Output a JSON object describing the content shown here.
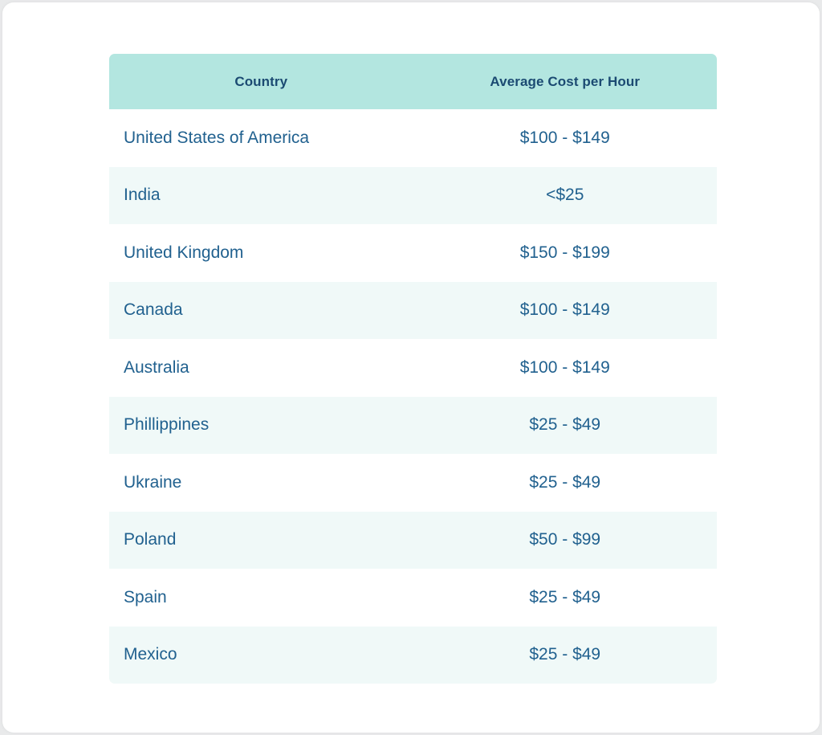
{
  "chart_data": {
    "type": "table",
    "columns": [
      "Country",
      "Average Cost per Hour"
    ],
    "rows": [
      {
        "country": "United States of America",
        "cost": "$100 - $149"
      },
      {
        "country": "India",
        "cost": "<$25"
      },
      {
        "country": "United Kingdom",
        "cost": "$150 - $199"
      },
      {
        "country": "Canada",
        "cost": "$100 - $149"
      },
      {
        "country": "Australia",
        "cost": "$100 - $149"
      },
      {
        "country": "Phillippines",
        "cost": "$25 - $49"
      },
      {
        "country": "Ukraine",
        "cost": "$25 - $49"
      },
      {
        "country": "Poland",
        "cost": "$50 - $99"
      },
      {
        "country": "Spain",
        "cost": "$25 - $49"
      },
      {
        "country": "Mexico",
        "cost": "$25 - $49"
      }
    ],
    "layout": {
      "header_position": "top",
      "alternating_rows": true,
      "first_body_row_background": "white"
    }
  },
  "colors": {
    "header_bg": "#b3e6e0",
    "header_text": "#1b4a72",
    "body_text": "#21618f",
    "alt_row_bg": "#f0f9f8",
    "card_bg": "#ffffff",
    "page_bg": "#e9eaeb"
  }
}
